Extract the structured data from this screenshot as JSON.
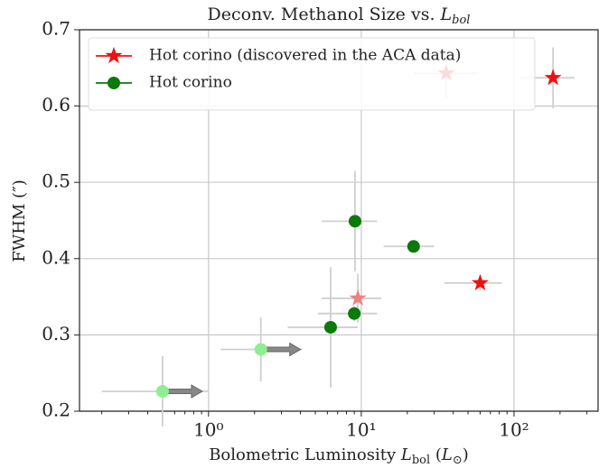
{
  "chart_data": {
    "type": "scatter",
    "title": [
      "Deconv. Methanol Size vs. ",
      "L",
      "bol"
    ],
    "xlabel": [
      "Bolometric Luminosity ",
      "L",
      "bol",
      " (",
      "L",
      "⊙",
      ")"
    ],
    "ylabel": "FWHM (″)",
    "xscale": "log",
    "grid": true,
    "legend": "upper left",
    "xlim": [
      0.143,
      355
    ],
    "ylim": [
      0.2,
      0.7
    ],
    "xticks": [
      {
        "value": 1,
        "label": "10⁰"
      },
      {
        "value": 10,
        "label": "10¹"
      },
      {
        "value": 100,
        "label": "10²"
      }
    ],
    "yticks": [
      0.2,
      0.3,
      0.4,
      0.5,
      0.6,
      0.7
    ],
    "series": [
      {
        "name": "Hot corino (discovered in the ACA data)",
        "marker": "star",
        "color": "#ee1111",
        "x": [
          36,
          180,
          60
        ],
        "values": [
          0.643,
          0.637,
          0.368
        ],
        "xmin": [
          22,
          110,
          35
        ],
        "xmax": [
          59,
          249,
          83
        ],
        "yerr": [
          0.033,
          0.04,
          0.01
        ]
      },
      {
        "marker": "star",
        "color": "#f08080",
        "x": [
          9.5
        ],
        "values": [
          0.348
        ],
        "xmin": [
          5.5
        ],
        "xmax": [
          13.5
        ],
        "yerr": [
          0.032
        ]
      },
      {
        "name": "Hot corino",
        "marker": "circle",
        "color": "#0a7a0a",
        "x": [
          9.1,
          22,
          9,
          6.3
        ],
        "values": [
          0.449,
          0.416,
          0.328,
          0.31
        ],
        "xmin": [
          5.5,
          14,
          5.2,
          3.3
        ],
        "xmax": [
          12.7,
          30,
          12.7,
          9.5
        ],
        "yerr": [
          0.066,
          0.005,
          0.01,
          0.079
        ]
      },
      {
        "marker": "circle",
        "color": "#90ee90",
        "lower_limit": true,
        "x": [
          0.5,
          2.2
        ],
        "values": [
          0.226,
          0.281
        ],
        "xmin": [
          0.2,
          1.2
        ],
        "xmax": [
          1.0,
          4.1
        ],
        "yerr": [
          0.046,
          0.042
        ]
      }
    ]
  }
}
